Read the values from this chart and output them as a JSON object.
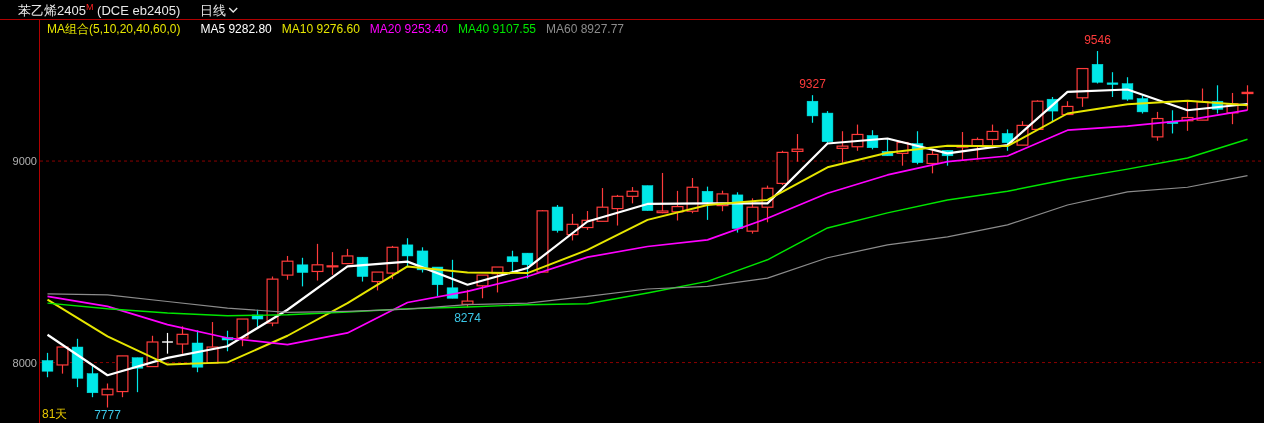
{
  "chart_data": {
    "type": "candlestick",
    "title": "苯乙烯2405$^{M}$ (DCE eb2405)",
    "subtitle": "日线",
    "legend_title": "MA组合(5,10,20,40,60,0)",
    "legend": "top left",
    "grid": "y",
    "ylim": [
      7700,
      9700
    ],
    "yticks": [
      8000,
      9000
    ],
    "categories": [
      null,
      null,
      null,
      null,
      null,
      null,
      null,
      null,
      null,
      null,
      null,
      null,
      null,
      null,
      null,
      null,
      null,
      null,
      null,
      null,
      null,
      null,
      null,
      null,
      null,
      null,
      null,
      null,
      null,
      null,
      null,
      null,
      null,
      null,
      null,
      null,
      null,
      null,
      null,
      null,
      null,
      null,
      null,
      null,
      null,
      null,
      null,
      null,
      null,
      null,
      null,
      null,
      null,
      null,
      null,
      null,
      null,
      null,
      null,
      null,
      null,
      null,
      null,
      null,
      null,
      null,
      null,
      null,
      null,
      null,
      null,
      null,
      null,
      null,
      null,
      null,
      null,
      null,
      null,
      null,
      null
    ],
    "ohlc": [
      [
        8010,
        8048,
        7927,
        7957
      ],
      [
        7988,
        8077,
        7945,
        8077
      ],
      [
        8077,
        8118,
        7878,
        7922
      ],
      [
        7945,
        7990,
        7828,
        7850
      ],
      [
        7840,
        7896,
        7777,
        7868
      ],
      [
        7856,
        8033,
        7828,
        8033
      ],
      [
        8024,
        8024,
        7853,
        7972
      ],
      [
        7980,
        8133,
        7980,
        8102
      ],
      [
        8102,
        8147,
        8044,
        8102
      ],
      [
        8092,
        8180,
        8044,
        8140
      ],
      [
        8097,
        8160,
        7952,
        7977
      ],
      [
        7998,
        8201,
        7998,
        8077
      ],
      [
        8124,
        8158,
        8056,
        8112
      ],
      [
        8122,
        8216,
        8081,
        8216
      ],
      [
        8236,
        8262,
        8176,
        8216
      ],
      [
        8196,
        8427,
        8180,
        8414
      ],
      [
        8434,
        8529,
        8411,
        8503
      ],
      [
        8485,
        8520,
        8378,
        8447
      ],
      [
        8452,
        8589,
        8407,
        8485
      ],
      [
        8475,
        8548,
        8435,
        8480
      ],
      [
        8491,
        8564,
        8491,
        8529
      ],
      [
        8523,
        8523,
        8402,
        8427
      ],
      [
        8402,
        8449,
        8358,
        8449
      ],
      [
        8444,
        8579,
        8414,
        8572
      ],
      [
        8584,
        8617,
        8473,
        8529
      ],
      [
        8554,
        8572,
        8447,
        8460
      ],
      [
        8474,
        8474,
        8328,
        8386
      ],
      [
        8371,
        8510,
        8319,
        8319
      ],
      [
        8289,
        8361,
        8274,
        8305
      ],
      [
        8381,
        8434,
        8319,
        8434
      ],
      [
        8441,
        8474,
        8348,
        8474
      ],
      [
        8525,
        8555,
        8444,
        8500
      ],
      [
        8543,
        8543,
        8418,
        8485
      ],
      [
        8449,
        8757,
        8449,
        8753
      ],
      [
        8772,
        8782,
        8645,
        8655
      ],
      [
        8635,
        8738,
        8606,
        8686
      ],
      [
        8670,
        8752,
        8658,
        8706
      ],
      [
        8701,
        8866,
        8701,
        8771
      ],
      [
        8764,
        8832,
        8680,
        8825
      ],
      [
        8825,
        8871,
        8790,
        8850
      ],
      [
        8878,
        8878,
        8754,
        8754
      ],
      [
        8744,
        8941,
        8741,
        8752
      ],
      [
        8748,
        8852,
        8705,
        8774
      ],
      [
        8751,
        8916,
        8741,
        8870
      ],
      [
        8850,
        8873,
        8708,
        8795
      ],
      [
        8779,
        8853,
        8751,
        8837
      ],
      [
        8832,
        8845,
        8645,
        8665
      ],
      [
        8652,
        8815,
        8640,
        8771
      ],
      [
        8771,
        8878,
        8696,
        8865
      ],
      [
        8889,
        9051,
        8881,
        9043
      ],
      [
        9048,
        9134,
        8997,
        9059
      ],
      [
        9297,
        9327,
        9190,
        9224
      ],
      [
        9238,
        9248,
        9087,
        9096
      ],
      [
        9063,
        9148,
        8992,
        9074
      ],
      [
        9071,
        9181,
        9051,
        9132
      ],
      [
        9127,
        9153,
        9058,
        9066
      ],
      [
        9048,
        9112,
        9026,
        9026
      ],
      [
        9038,
        9099,
        8977,
        9092
      ],
      [
        9087,
        9148,
        8984,
        8992
      ],
      [
        8988,
        9059,
        8939,
        9033
      ],
      [
        9053,
        9053,
        8977,
        9026
      ],
      [
        9069,
        9144,
        9005,
        9077
      ],
      [
        9076,
        9117,
        9008,
        9107
      ],
      [
        9107,
        9181,
        9079,
        9147
      ],
      [
        9137,
        9157,
        9051,
        9091
      ],
      [
        9079,
        9198,
        9079,
        9177
      ],
      [
        9157,
        9302,
        9157,
        9297
      ],
      [
        9307,
        9318,
        9198,
        9248
      ],
      [
        9231,
        9297,
        9231,
        9271
      ],
      [
        9314,
        9459,
        9269,
        9459
      ],
      [
        9480,
        9546,
        9385,
        9391
      ],
      [
        9388,
        9441,
        9318,
        9380
      ],
      [
        9384,
        9416,
        9299,
        9307
      ],
      [
        9310,
        9327,
        9236,
        9244
      ],
      [
        9120,
        9244,
        9101,
        9211
      ],
      [
        9195,
        9252,
        9137,
        9186
      ],
      [
        9200,
        9294,
        9150,
        9216
      ],
      [
        9203,
        9360,
        9203,
        9294
      ],
      [
        9297,
        9376,
        9236,
        9257
      ],
      [
        9239,
        9338,
        9183,
        9285
      ],
      [
        9335,
        9376,
        9252,
        9341
      ]
    ],
    "colors": [
      "#00e8e8",
      "#ff3b3b",
      "#00e8e8",
      "#00e8e8",
      "#ff3b3b",
      "#ff3b3b",
      "#00e8e8",
      "#ff3b3b",
      "#ffffff",
      "#ff3b3b",
      "#00e8e8",
      "#ff3b3b",
      "#00e8e8",
      "#ff3b3b",
      "#00e8e8",
      "#ff3b3b",
      "#ff3b3b",
      "#00e8e8",
      "#ff3b3b",
      "#ff3b3b",
      "#ff3b3b",
      "#00e8e8",
      "#ff3b3b",
      "#ff3b3b",
      "#00e8e8",
      "#00e8e8",
      "#00e8e8",
      "#00e8e8",
      "#ff3b3b",
      "#ff3b3b",
      "#ff3b3b",
      "#00e8e8",
      "#00e8e8",
      "#ff3b3b",
      "#00e8e8",
      "#ff3b3b",
      "#ff3b3b",
      "#ff3b3b",
      "#ff3b3b",
      "#ff3b3b",
      "#00e8e8",
      "#ff3b3b",
      "#ff3b3b",
      "#ff3b3b",
      "#00e8e8",
      "#ff3b3b",
      "#00e8e8",
      "#ff3b3b",
      "#ff3b3b",
      "#ff3b3b",
      "#ff3b3b",
      "#00e8e8",
      "#00e8e8",
      "#ff3b3b",
      "#ff3b3b",
      "#00e8e8",
      "#00e8e8",
      "#ff3b3b",
      "#00e8e8",
      "#ff3b3b",
      "#00e8e8",
      "#ff3b3b",
      "#ff3b3b",
      "#ff3b3b",
      "#00e8e8",
      "#ff3b3b",
      "#ff3b3b",
      "#00e8e8",
      "#ff3b3b",
      "#ff3b3b",
      "#00e8e8",
      "#00e8e8",
      "#00e8e8",
      "#00e8e8",
      "#ff3b3b",
      "#00e8e8",
      "#ff3b3b",
      "#ff3b3b",
      "#00e8e8",
      "#ff3b3b",
      "#ff3b3b"
    ],
    "series": [
      {
        "name": "MA5 9282.80",
        "type": "line",
        "color": "#ffffff",
        "values": [
          8138,
          null,
          null,
          null,
          7937,
          null,
          null,
          null,
          8023,
          null,
          null,
          null,
          8081,
          null,
          null,
          null,
          8262,
          null,
          null,
          null,
          8477,
          null,
          null,
          null,
          8501,
          null,
          null,
          null,
          8386,
          null,
          null,
          null,
          8469,
          null,
          null,
          null,
          8700,
          null,
          null,
          null,
          8787,
          null,
          null,
          null,
          8790,
          null,
          null,
          null,
          8790,
          null,
          null,
          null,
          9087,
          null,
          null,
          null,
          9112,
          null,
          null,
          null,
          9038,
          null,
          null,
          null,
          9079,
          null,
          null,
          null,
          9343,
          null,
          null,
          null,
          9355,
          null,
          null,
          null,
          9252,
          null,
          null,
          null,
          9283
        ]
      },
      {
        "name": "MA10 9276.60",
        "type": "line",
        "color": "#e6e600",
        "values": [
          8312,
          null,
          null,
          null,
          8130,
          null,
          null,
          null,
          7990,
          null,
          null,
          null,
          8001,
          null,
          null,
          null,
          8133,
          null,
          null,
          null,
          8295,
          null,
          null,
          null,
          8477,
          null,
          null,
          null,
          8447,
          null,
          null,
          null,
          8444,
          null,
          null,
          null,
          8559,
          null,
          null,
          null,
          8708,
          null,
          null,
          null,
          8782,
          null,
          null,
          null,
          8807,
          null,
          null,
          null,
          8969,
          null,
          null,
          null,
          9041,
          null,
          null,
          null,
          9076,
          null,
          null,
          null,
          9074,
          null,
          null,
          null,
          9236,
          null,
          null,
          null,
          9282,
          null,
          null,
          null,
          9299,
          null,
          null,
          null,
          9277
        ]
      },
      {
        "name": "MA20 9253.40",
        "type": "line",
        "color": "#ff00ff",
        "values": [
          8328,
          null,
          null,
          null,
          8279,
          null,
          null,
          null,
          8188,
          null,
          null,
          null,
          8122,
          null,
          null,
          null,
          8089,
          null,
          null,
          null,
          8147,
          null,
          null,
          null,
          8298,
          null,
          null,
          null,
          8353,
          null,
          null,
          null,
          8427,
          null,
          null,
          null,
          8523,
          null,
          null,
          null,
          8576,
          null,
          null,
          null,
          8609,
          null,
          null,
          null,
          8716,
          null,
          null,
          null,
          8840,
          null,
          null,
          null,
          8931,
          null,
          null,
          null,
          8997,
          null,
          null,
          null,
          9025,
          null,
          null,
          null,
          9153,
          null,
          null,
          null,
          9173,
          null,
          null,
          null,
          9203,
          null,
          null,
          null,
          9253
        ]
      },
      {
        "name": "MA40 9107.55",
        "type": "line",
        "color": "#00e600",
        "values": [
          8295,
          null,
          null,
          null,
          8267,
          null,
          null,
          null,
          8246,
          null,
          null,
          null,
          8232,
          null,
          null,
          null,
          8237,
          null,
          null,
          null,
          8251,
          null,
          null,
          null,
          8267,
          null,
          null,
          null,
          8276,
          null,
          null,
          null,
          8287,
          null,
          null,
          null,
          8292,
          null,
          null,
          null,
          8345,
          null,
          null,
          null,
          8403,
          null,
          null,
          null,
          8510,
          null,
          null,
          null,
          8668,
          null,
          null,
          null,
          8743,
          null,
          null,
          null,
          8807,
          null,
          null,
          null,
          8850,
          null,
          null,
          null,
          8910,
          null,
          null,
          null,
          8960,
          null,
          null,
          null,
          9015,
          null,
          null,
          null,
          9108
        ]
      },
      {
        "name": "MA60 8927.77",
        "type": "line",
        "color": "#8c8c8c",
        "values": [
          8341,
          null,
          null,
          null,
          8336,
          null,
          null,
          null,
          8303,
          null,
          null,
          null,
          8270,
          null,
          null,
          null,
          8249,
          null,
          null,
          null,
          8254,
          null,
          null,
          null,
          8265,
          null,
          null,
          null,
          8287,
          null,
          null,
          null,
          8295,
          null,
          null,
          null,
          8328,
          null,
          null,
          null,
          8365,
          null,
          null,
          null,
          8378,
          null,
          null,
          null,
          8419,
          null,
          null,
          null,
          8520,
          null,
          null,
          null,
          8584,
          null,
          null,
          null,
          8624,
          null,
          null,
          null,
          8683,
          null,
          null,
          null,
          8782,
          null,
          null,
          null,
          8847,
          null,
          null,
          null,
          8870,
          null,
          null,
          null,
          8928
        ]
      }
    ],
    "annotations": [
      {
        "text": "9327",
        "y": 9327
      },
      {
        "text": "9546",
        "y": 9546
      },
      {
        "text": "8274",
        "y": 8274
      },
      {
        "text": "7777",
        "y": 7777
      },
      "81天"
    ]
  }
}
